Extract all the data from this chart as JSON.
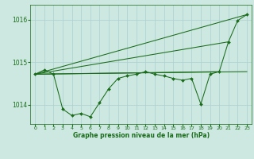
{
  "xlabel": "Graphe pression niveau de la mer (hPa)",
  "xtick_labels": [
    "0",
    "1",
    "2",
    "3",
    "4",
    "5",
    "6",
    "7",
    "8",
    "9",
    "10",
    "11",
    "12",
    "13",
    "14",
    "15",
    "16",
    "17",
    "18",
    "19",
    "20",
    "21",
    "22",
    "23"
  ],
  "yticks": [
    1014,
    1015,
    1016
  ],
  "ylim": [
    1013.55,
    1016.35
  ],
  "xlim": [
    -0.5,
    23.5
  ],
  "background_color": "#cce8e0",
  "grid_color": "#aacfcf",
  "line_color": "#1a6b1a",
  "zigzag_y": [
    1014.72,
    1014.82,
    1014.72,
    1013.9,
    1013.75,
    1013.8,
    1013.72,
    1014.05,
    1014.38,
    1014.62,
    1014.68,
    1014.72,
    1014.78,
    1014.72,
    1014.68,
    1014.62,
    1014.58,
    1014.62,
    1014.02,
    1014.72,
    1014.78,
    1015.48,
    1015.98,
    1016.12
  ],
  "smooth_lines": [
    {
      "x0": 0,
      "x1": 23,
      "y0": 1014.72,
      "y1": 1016.12
    },
    {
      "x0": 0,
      "x1": 23,
      "y0": 1014.72,
      "y1": 1014.78
    },
    {
      "x0": 0,
      "x1": 20,
      "y0": 1014.72,
      "y1": 1014.78
    },
    {
      "x0": 0,
      "x1": 21,
      "y0": 1014.72,
      "y1": 1015.48
    }
  ]
}
